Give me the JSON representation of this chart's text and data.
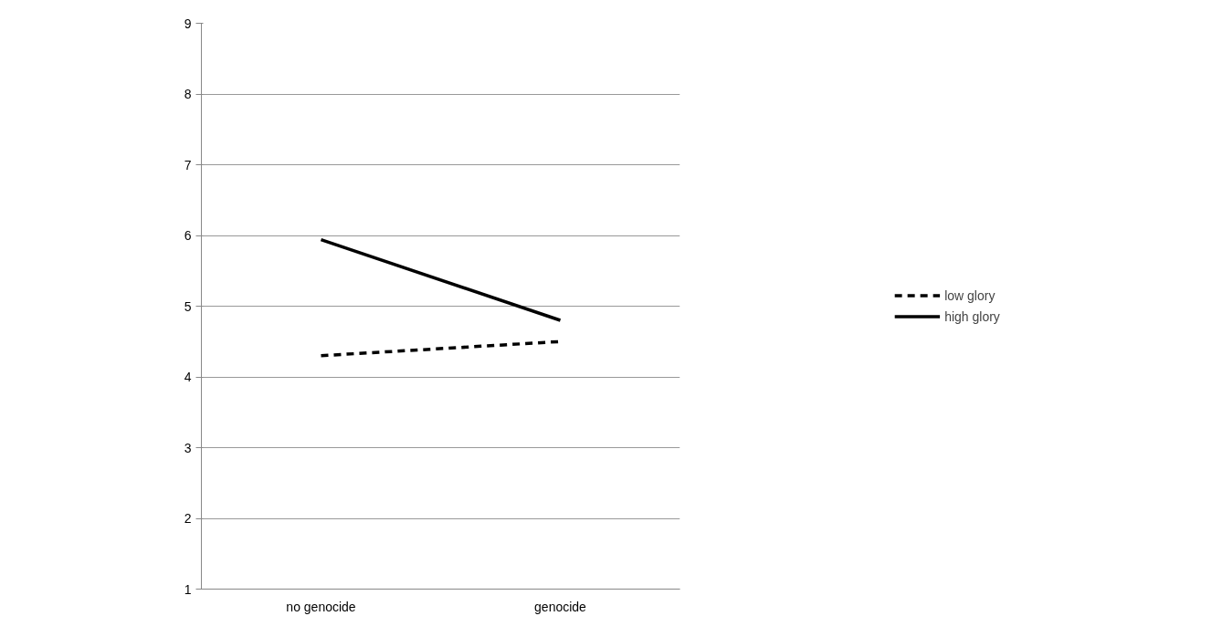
{
  "chart_data": {
    "type": "line",
    "categories": [
      "no genocide",
      "genocide"
    ],
    "series": [
      {
        "name": "low glory",
        "color": "#000000",
        "values": [
          4.3,
          4.5
        ],
        "line_style": "dashed"
      },
      {
        "name": "high glory",
        "color": "#000000",
        "values": [
          5.94,
          4.8
        ],
        "line_style": "solid"
      }
    ],
    "ylim": [
      1,
      9
    ],
    "yticks": [
      1,
      2,
      3,
      4,
      5,
      6,
      7,
      8,
      9
    ],
    "grid": "y",
    "legend": "right",
    "marker": "none"
  }
}
